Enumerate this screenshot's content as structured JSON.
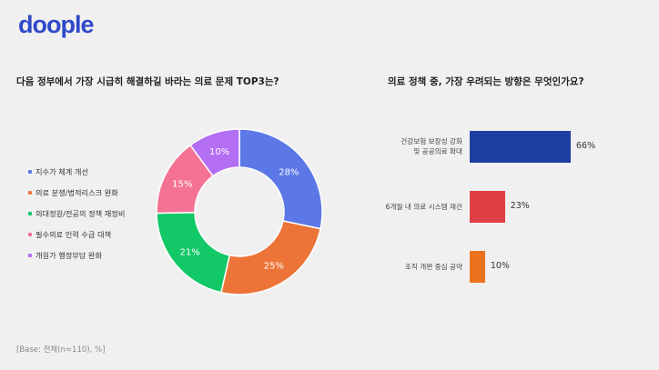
{
  "brand": {
    "logo_text": "doople"
  },
  "base_note": "[Base: 전체(n=110), %]",
  "colors": {
    "brand": "#2f49c7",
    "donut": [
      "#5b78e6",
      "#ec7438",
      "#12c867",
      "#f47395",
      "#b46ef4"
    ],
    "bars": [
      "#1f3ea2",
      "#de4044",
      "#ec731d"
    ]
  },
  "chart_data": [
    {
      "type": "pie",
      "variant": "donut",
      "title": "다음 정부에서 가장 시급히 해결하길 바라는 의료 문제 TOP3는?",
      "categories": [
        "지수가 체계 개선",
        "의료 분쟁/법적리스크 완화",
        "의대정원/전공의 정책 재정비",
        "필수의료 인력 수급 대책",
        "개원가 행정부담 완화"
      ],
      "values": [
        28,
        25,
        21,
        15,
        10
      ],
      "value_labels": [
        "28%",
        "25%",
        "21%",
        "15%",
        "10%"
      ],
      "legend": "left"
    },
    {
      "type": "bar",
      "orientation": "horizontal",
      "title": "의료 정책 중, 가장 우려되는 방향은 무엇인가요?",
      "categories": [
        [
          "건강보험 보장성 강화",
          "및 공공의료 확대"
        ],
        [
          "6개월 내 의료 시스템 재건"
        ],
        [
          "조직 개편 중심 공약"
        ]
      ],
      "values": [
        66,
        23,
        10
      ],
      "value_labels": [
        "66%",
        "23%",
        "10%"
      ]
    }
  ]
}
